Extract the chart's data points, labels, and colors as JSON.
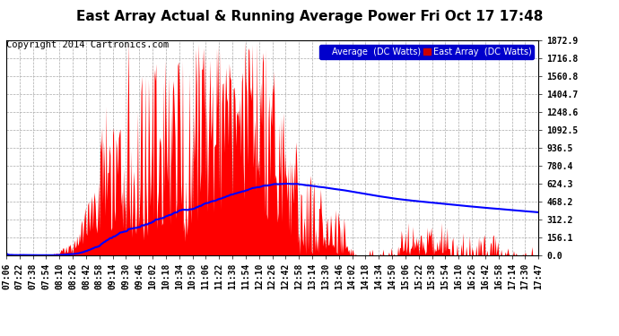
{
  "title": "East Array Actual & Running Average Power Fri Oct 17 17:48",
  "copyright": "Copyright 2014 Cartronics.com",
  "yticks": [
    0.0,
    156.1,
    312.2,
    468.2,
    624.3,
    780.4,
    936.5,
    1092.5,
    1248.6,
    1404.7,
    1560.8,
    1716.8,
    1872.9
  ],
  "ymax": 1872.9,
  "ymin": 0.0,
  "legend_labels": [
    "Average  (DC Watts)",
    "East Array  (DC Watts)"
  ],
  "legend_colors_bg": [
    "#0000cc",
    "#cc0000"
  ],
  "legend_text_color": "#ffffff",
  "bg_color": "#ffffff",
  "grid_color": "#aaaaaa",
  "fill_color": "#ff0000",
  "line_color": "#0000ff",
  "title_fontsize": 11,
  "copyright_fontsize": 7.5,
  "tick_fontsize": 7,
  "xtick_labels": [
    "07:06",
    "07:22",
    "07:38",
    "07:54",
    "08:10",
    "08:26",
    "08:42",
    "08:58",
    "09:14",
    "09:30",
    "09:46",
    "10:02",
    "10:18",
    "10:34",
    "10:50",
    "11:06",
    "11:22",
    "11:38",
    "11:54",
    "12:10",
    "12:26",
    "12:42",
    "12:58",
    "13:14",
    "13:30",
    "13:46",
    "14:02",
    "14:18",
    "14:34",
    "14:50",
    "15:06",
    "15:22",
    "15:38",
    "15:54",
    "16:10",
    "16:26",
    "16:42",
    "16:58",
    "17:14",
    "17:30",
    "17:47"
  ]
}
